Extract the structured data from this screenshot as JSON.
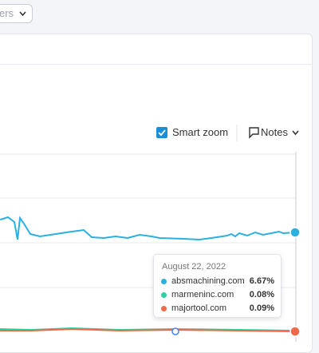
{
  "toolbar": {
    "dropdown": "ers"
  },
  "chart_panel": {
    "smart_zoom": "Smart zoom",
    "notes": "Notes"
  },
  "tooltip": {
    "date": "August 22, 2022",
    "rows": [
      {
        "domain": "absmachining.com",
        "value": "6.67%",
        "color": "#2bb0e0"
      },
      {
        "domain": "marmeninc.com",
        "value": "0.08%",
        "color": "#2ecfa4"
      },
      {
        "domain": "majortool.com",
        "value": "0.09%",
        "color": "#f06a4a"
      }
    ]
  }
}
